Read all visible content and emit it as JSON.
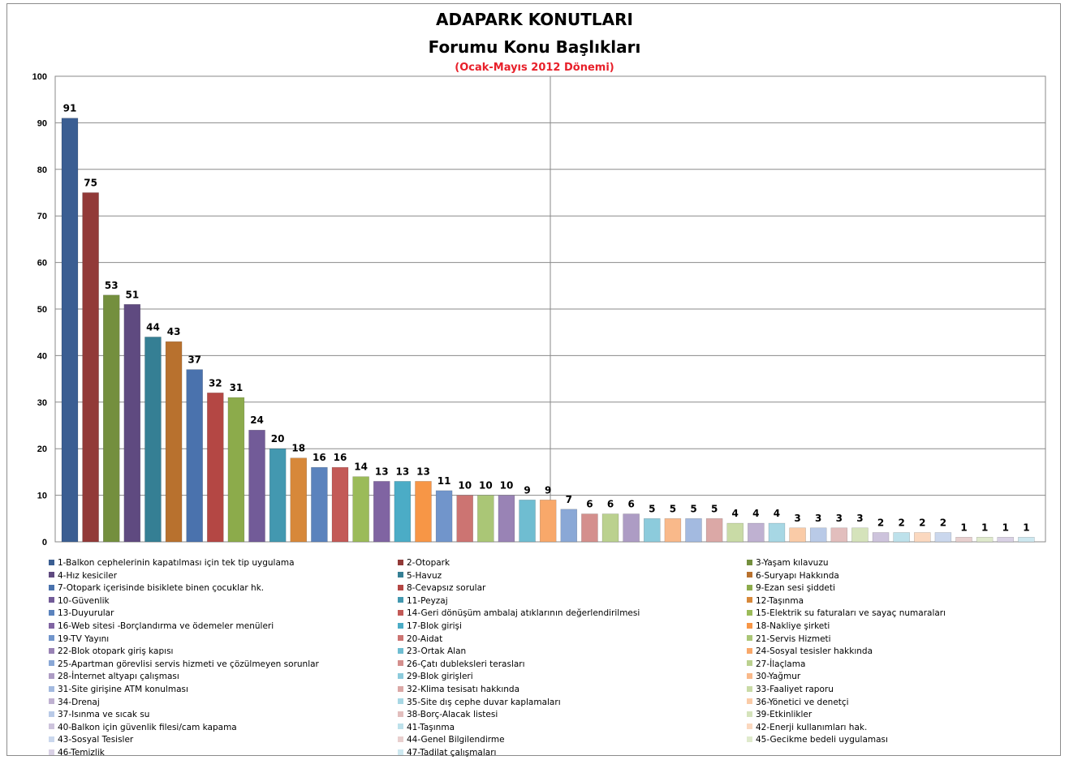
{
  "chart_data": {
    "type": "bar",
    "title": "ADAPARK KONUTLARI",
    "subtitle": "Forumu Konu Başlıkları",
    "period": "(Ocak-Mayıs 2012 Dönemi)",
    "ylim": [
      0,
      100
    ],
    "yticks": [
      "0",
      "10",
      "20",
      "30",
      "40",
      "50",
      "60",
      "70",
      "80",
      "90",
      "100"
    ],
    "grid": true,
    "legend_position": "bottom",
    "categories": [
      "1-Balkon cephelerinin kapatılması için tek tip uygulama",
      "2-Otopark",
      "3-Yaşam kılavuzu",
      "4-Hız kesiciler",
      "5-Havuz",
      "6-Suryapı Hakkında",
      "7-Otopark içerisinde bisiklete binen çocuklar hk.",
      "8-Cevapsız sorular",
      "9-Ezan sesi şiddeti",
      "10-Güvenlik",
      "11-Peyzaj",
      "12-Taşınma",
      "13-Duyurular",
      "14-Geri dönüşüm ambalaj atıklarının değerlendirilmesi",
      "15-Elektrik su faturaları ve sayaç numaraları",
      "16-Web sitesi -Borçlandırma ve ödemeler menüleri",
      "17-Blok girişi",
      "18-Nakliye şirketi",
      "19-TV Yayını",
      "20-Aidat",
      "21-Servis Hizmeti",
      "22-Blok otopark giriş kapısı",
      "23-Ortak Alan",
      "24-Sosyal tesisler hakkında",
      "25-Apartman görevlisi servis hizmeti ve çözülmeyen sorunlar",
      "26-Çatı dubleksleri terasları",
      "27-İlaçlama",
      "28-İnternet altyapı çalışması",
      "29-Blok girişleri",
      "30-Yağmur",
      "31-Site girişine ATM konulması",
      "32-Klima tesisatı hakkında",
      "33-Faaliyet raporu",
      "34-Drenaj",
      "35-Site dış cephe duvar kaplamaları",
      "36-Yönetici ve denetçi",
      "37-Isınma ve sıcak su",
      "38-Borç-Alacak listesi",
      "39-Etkinlikler",
      "40-Balkon için güvenlik filesi/cam kapama",
      "41-Taşınma",
      "42-Enerji kullanımları hak.",
      "43-Sosyal Tesisler",
      "44-Genel Bilgilendirme",
      "45-Gecikme bedeli uygulaması",
      "46-Temizlik",
      "47-Tadilat çalışmaları"
    ],
    "values": [
      91,
      75,
      53,
      51,
      44,
      43,
      37,
      32,
      31,
      24,
      20,
      18,
      16,
      16,
      14,
      13,
      13,
      13,
      11,
      10,
      10,
      10,
      9,
      9,
      7,
      6,
      6,
      6,
      5,
      5,
      5,
      5,
      4,
      4,
      4,
      3,
      3,
      3,
      3,
      2,
      2,
      2,
      2,
      1,
      1,
      1,
      1
    ],
    "colors": [
      "#3b5e92",
      "#923a38",
      "#748f3e",
      "#5f4a80",
      "#357f94",
      "#b8712e",
      "#4a72ad",
      "#b44744",
      "#8cab4b",
      "#725b98",
      "#4398b0",
      "#d7883a",
      "#5b83bd",
      "#c35a57",
      "#9bbb59",
      "#8064a2",
      "#4bacc6",
      "#f79646",
      "#7195cb",
      "#cc7472",
      "#aac676",
      "#9983b5",
      "#6fbdd1",
      "#f8a86a",
      "#8aa8d6",
      "#d48f8d",
      "#bbd18f",
      "#ad9cc4",
      "#8ccbdc",
      "#f9b98a",
      "#a3bae0",
      "#dba8a6",
      "#c9dba6",
      "#bfb1d1",
      "#a7d7e4",
      "#facba7",
      "#b9cae7",
      "#e2bebd",
      "#d5e3bb",
      "#cdc3dc",
      "#bde1eb",
      "#fbd8bf",
      "#cad7ed",
      "#e8cfce",
      "#dfeacc",
      "#d9d1e5",
      "#cde8f0"
    ]
  }
}
